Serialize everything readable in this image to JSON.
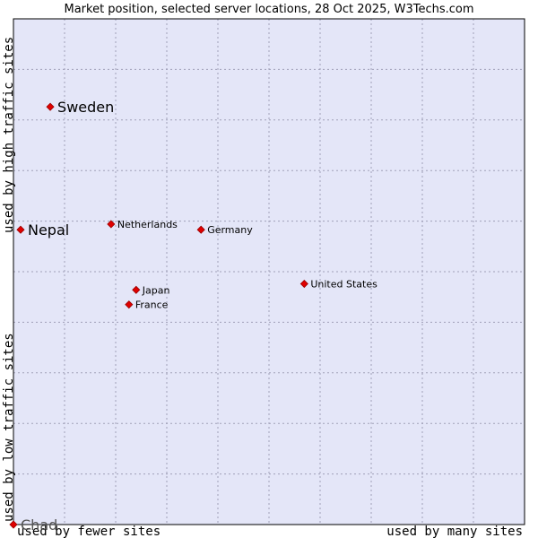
{
  "chart_data": {
    "type": "scatter",
    "title": "Market position, selected server locations, 28 Oct 2025, W3Techs.com",
    "xlabel_left": "used by fewer sites",
    "xlabel_right": "used by many sites",
    "ylabel_top": "used by high traffic sites",
    "ylabel_bottom": "used by low traffic sites",
    "xlim": [
      0,
      100
    ],
    "ylim": [
      0,
      100
    ],
    "grid": true,
    "colors": {
      "plot_background": "#e4e6f8",
      "grid": "#a0a0b8",
      "point": "#e00000",
      "point_outline": "#990000",
      "frame": "#000000"
    },
    "points": [
      {
        "label": "Sweden",
        "x": 7.2,
        "y": 82.6,
        "emphasis": "large"
      },
      {
        "label": "Nepal",
        "x": 1.4,
        "y": 58.3,
        "emphasis": "large"
      },
      {
        "label": "Netherlands",
        "x": 19.1,
        "y": 59.4,
        "emphasis": "normal"
      },
      {
        "label": "Germany",
        "x": 36.7,
        "y": 58.3,
        "emphasis": "normal"
      },
      {
        "label": "United States",
        "x": 56.9,
        "y": 47.6,
        "emphasis": "normal"
      },
      {
        "label": "Japan",
        "x": 24.0,
        "y": 46.4,
        "emphasis": "normal"
      },
      {
        "label": "France",
        "x": 22.6,
        "y": 43.5,
        "emphasis": "normal"
      },
      {
        "label": "Chad",
        "x": 0.0,
        "y": 0.0,
        "emphasis": "large-gray"
      }
    ]
  }
}
